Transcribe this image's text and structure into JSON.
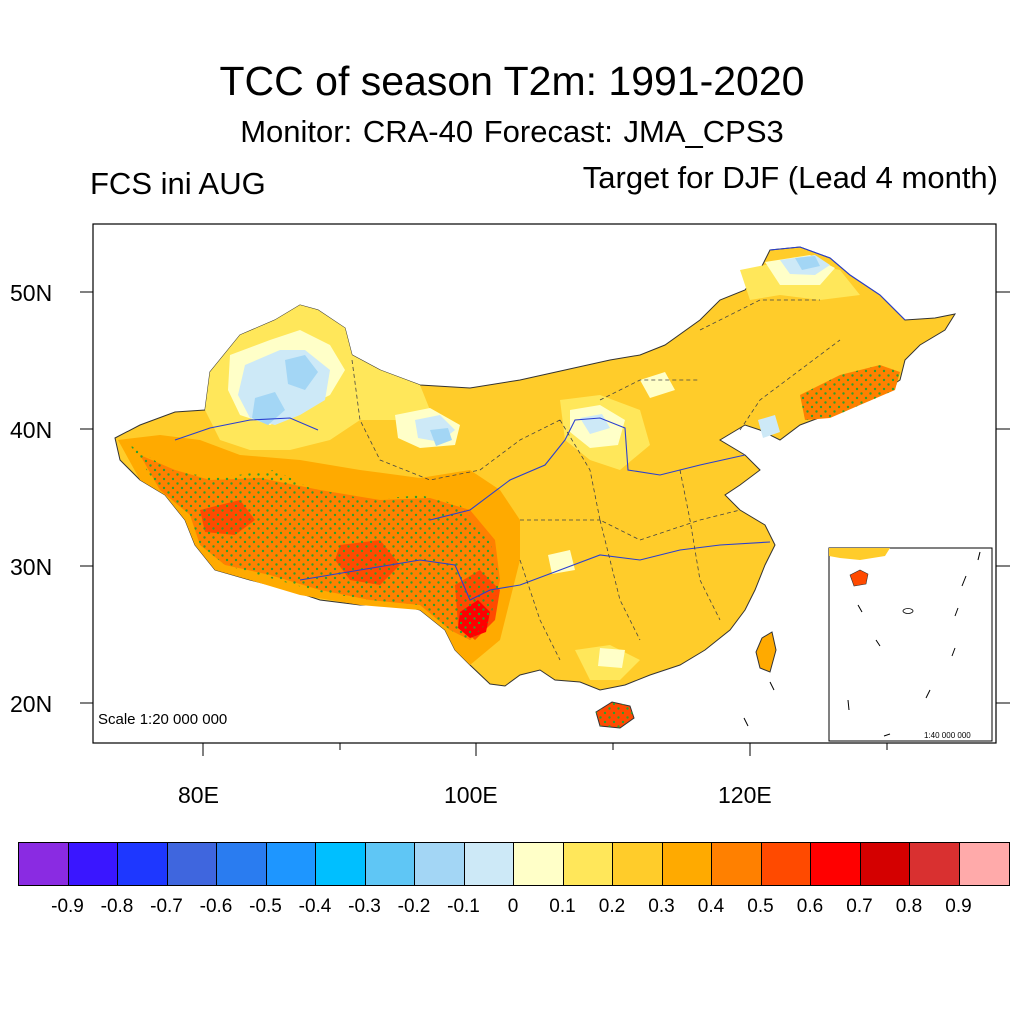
{
  "title": "TCC of season T2m: 1991-2020",
  "subtitle": "Monitor: CRA-40   Forecast: JMA_CPS3",
  "left_label": "FCS ini AUG",
  "right_label": "Target for DJF (Lead 4 month)",
  "lat_labels": [
    "50N",
    "40N",
    "30N",
    "20N"
  ],
  "lon_labels": [
    "80E",
    "100E",
    "120E"
  ],
  "scale_note": "Scale 1:20 000 000",
  "inset_scale_note": "1:40 000 000",
  "colorbar": {
    "colors": [
      "#8a2be2",
      "#3a16ff",
      "#1e37ff",
      "#3f66de",
      "#2a7cf0",
      "#1e96ff",
      "#00bfff",
      "#5fc6f5",
      "#a3d6f5",
      "#cde9f7",
      "#ffffc8",
      "#ffe75a",
      "#ffcc2a",
      "#ffaa00",
      "#ff8000",
      "#ff4a00",
      "#ff0000",
      "#d40000",
      "#d93030",
      "#ffaaaa"
    ],
    "labels": [
      "-0.9",
      "-0.8",
      "-0.7",
      "-0.6",
      "-0.5",
      "-0.4",
      "-0.3",
      "-0.2",
      "-0.1",
      "0",
      "0.1",
      "0.2",
      "0.3",
      "0.4",
      "0.5",
      "0.6",
      "0.7",
      "0.8",
      "0.9"
    ]
  }
}
